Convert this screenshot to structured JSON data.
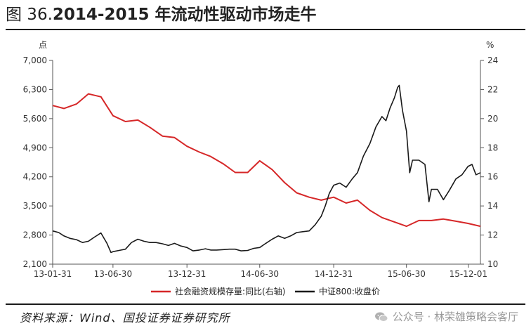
{
  "header": {
    "prefix": "图 36.",
    "title": "2014-2015 年流动性驱动市场走牛"
  },
  "footer": {
    "source": "资料来源：Wind、国投证券证券研究所",
    "watermark": "公众号 · 林荣雄策略会客厅",
    "watermark_icon": "wechat-icon"
  },
  "chart_data": {
    "type": "line",
    "ylabel_left": "点",
    "ylabel_right": "%",
    "ylim_left": [
      2100,
      7000
    ],
    "ylim_right": [
      10,
      24
    ],
    "yticks_left": [
      "2,100",
      "2,800",
      "3,500",
      "4,200",
      "4,900",
      "5,600",
      "6,300",
      "7,000"
    ],
    "yticks_left_values": [
      2100,
      2800,
      3500,
      4200,
      4900,
      5600,
      6300,
      7000
    ],
    "yticks_right": [
      "10",
      "12",
      "14",
      "16",
      "18",
      "20",
      "22",
      "24"
    ],
    "yticks_right_values": [
      10,
      12,
      14,
      16,
      18,
      20,
      22,
      24
    ],
    "xlim": [
      "2013-01-31",
      "2015-12-31"
    ],
    "xticks": [
      "13-01-31",
      "13-06-30",
      "13-12-31",
      "14-06-30",
      "14-12-31",
      "15-06-30",
      "15-12-01"
    ],
    "xticks_dates": [
      "2013-01-31",
      "2013-06-30",
      "2013-12-31",
      "2014-06-30",
      "2014-12-31",
      "2015-06-30",
      "2015-12-01"
    ],
    "legend_position": "bottom",
    "series": [
      {
        "name": "社会融资规模存量:同比(右轴)",
        "axis": "right",
        "color": "#d62728",
        "x": [
          "2013-01-31",
          "2013-02-28",
          "2013-03-31",
          "2013-04-30",
          "2013-05-31",
          "2013-06-30",
          "2013-07-31",
          "2013-08-31",
          "2013-09-30",
          "2013-10-31",
          "2013-11-30",
          "2013-12-31",
          "2014-01-31",
          "2014-02-28",
          "2014-03-31",
          "2014-04-30",
          "2014-05-31",
          "2014-06-30",
          "2014-07-31",
          "2014-08-31",
          "2014-09-30",
          "2014-10-31",
          "2014-11-30",
          "2014-12-31",
          "2015-01-31",
          "2015-02-28",
          "2015-03-31",
          "2015-04-30",
          "2015-05-31",
          "2015-06-30",
          "2015-07-31",
          "2015-08-31",
          "2015-09-30",
          "2015-10-31",
          "2015-11-30",
          "2015-12-31"
        ],
        "values": [
          20.9,
          20.7,
          21.0,
          21.7,
          21.5,
          20.2,
          19.8,
          19.9,
          19.4,
          18.8,
          18.7,
          18.1,
          17.7,
          17.4,
          16.9,
          16.3,
          16.3,
          17.1,
          16.5,
          15.6,
          14.9,
          14.6,
          14.4,
          14.6,
          14.2,
          14.4,
          13.7,
          13.2,
          12.9,
          12.6,
          13.0,
          13.0,
          13.1,
          12.95,
          12.8,
          12.6
        ]
      },
      {
        "name": "中证800:收盘价",
        "axis": "left",
        "color": "#1a1a1a",
        "x": [
          "2013-01-31",
          "2013-02-15",
          "2013-02-28",
          "2013-03-15",
          "2013-03-31",
          "2013-04-15",
          "2013-04-30",
          "2013-05-15",
          "2013-05-31",
          "2013-06-15",
          "2013-06-25",
          "2013-06-30",
          "2013-07-15",
          "2013-07-31",
          "2013-08-15",
          "2013-08-31",
          "2013-09-15",
          "2013-09-30",
          "2013-10-15",
          "2013-10-31",
          "2013-11-15",
          "2013-11-30",
          "2013-12-15",
          "2013-12-31",
          "2014-01-15",
          "2014-01-31",
          "2014-02-15",
          "2014-02-28",
          "2014-03-15",
          "2014-03-31",
          "2014-04-15",
          "2014-04-30",
          "2014-05-15",
          "2014-05-31",
          "2014-06-15",
          "2014-06-30",
          "2014-07-15",
          "2014-07-31",
          "2014-08-15",
          "2014-08-31",
          "2014-09-15",
          "2014-09-30",
          "2014-10-15",
          "2014-10-31",
          "2014-11-15",
          "2014-11-30",
          "2014-12-10",
          "2014-12-20",
          "2014-12-31",
          "2015-01-15",
          "2015-01-31",
          "2015-02-15",
          "2015-02-28",
          "2015-03-15",
          "2015-03-31",
          "2015-04-15",
          "2015-04-30",
          "2015-05-10",
          "2015-05-20",
          "2015-05-31",
          "2015-06-08",
          "2015-06-12",
          "2015-06-20",
          "2015-06-30",
          "2015-07-08",
          "2015-07-15",
          "2015-07-31",
          "2015-08-15",
          "2015-08-25",
          "2015-08-31",
          "2015-09-15",
          "2015-09-30",
          "2015-10-15",
          "2015-10-31",
          "2015-11-15",
          "2015-11-30",
          "2015-12-10",
          "2015-12-20",
          "2015-12-31"
        ],
        "values": [
          2900,
          2860,
          2780,
          2720,
          2690,
          2620,
          2650,
          2750,
          2850,
          2600,
          2380,
          2400,
          2430,
          2460,
          2620,
          2700,
          2650,
          2620,
          2620,
          2590,
          2550,
          2600,
          2540,
          2500,
          2420,
          2440,
          2470,
          2440,
          2440,
          2450,
          2460,
          2460,
          2420,
          2430,
          2480,
          2500,
          2600,
          2700,
          2780,
          2720,
          2780,
          2860,
          2880,
          2900,
          3050,
          3250,
          3500,
          3800,
          4000,
          4050,
          3950,
          4150,
          4300,
          4700,
          5000,
          5400,
          5650,
          5550,
          5850,
          6100,
          6350,
          6400,
          5800,
          5300,
          4300,
          4600,
          4600,
          4500,
          3600,
          3900,
          3900,
          3650,
          3880,
          4150,
          4250,
          4450,
          4500,
          4250,
          4300
        ]
      }
    ]
  }
}
